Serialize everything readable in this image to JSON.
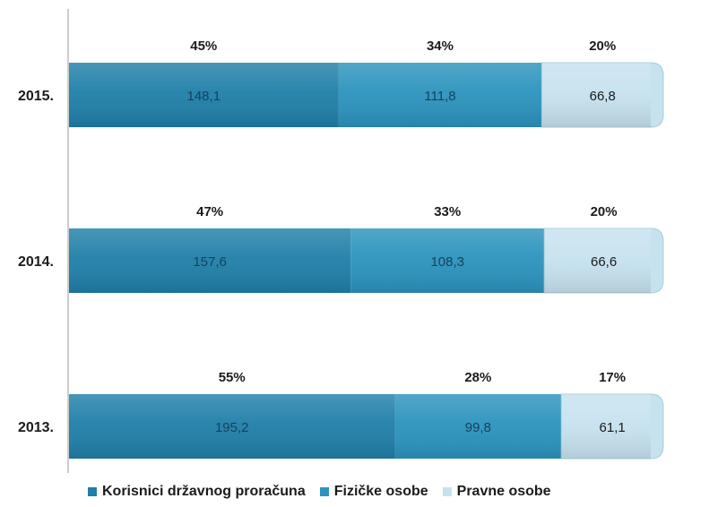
{
  "chart_data": {
    "type": "bar",
    "orientation": "horizontal",
    "stacked": true,
    "title": "",
    "xlabel": "",
    "ylabel": "",
    "categories": [
      "2015.",
      "2014.",
      "2013."
    ],
    "series": [
      {
        "name": "Korisnici državnog proračuna",
        "values": [
          148.1,
          157.6,
          195.2
        ],
        "labels": [
          "148,1",
          "157,6",
          "195,2"
        ],
        "shares": [
          "45%",
          "47%",
          "55%"
        ],
        "color": "#1f7fa8"
      },
      {
        "name": "Fizičke osobe",
        "values": [
          111.8,
          108.3,
          99.8
        ],
        "labels": [
          "111,8",
          "108,3",
          "99,8"
        ],
        "shares": [
          "34%",
          "33%",
          "28%"
        ],
        "color": "#2b93bd"
      },
      {
        "name": "Pravne osobe",
        "values": [
          66.8,
          66.6,
          61.1
        ],
        "labels": [
          "66,8",
          "66,6",
          "61,1"
        ],
        "shares": [
          "20%",
          "20%",
          "17%"
        ],
        "color": "#c6e2ef"
      }
    ],
    "legend": {
      "position": "bottom"
    },
    "grid": false
  }
}
